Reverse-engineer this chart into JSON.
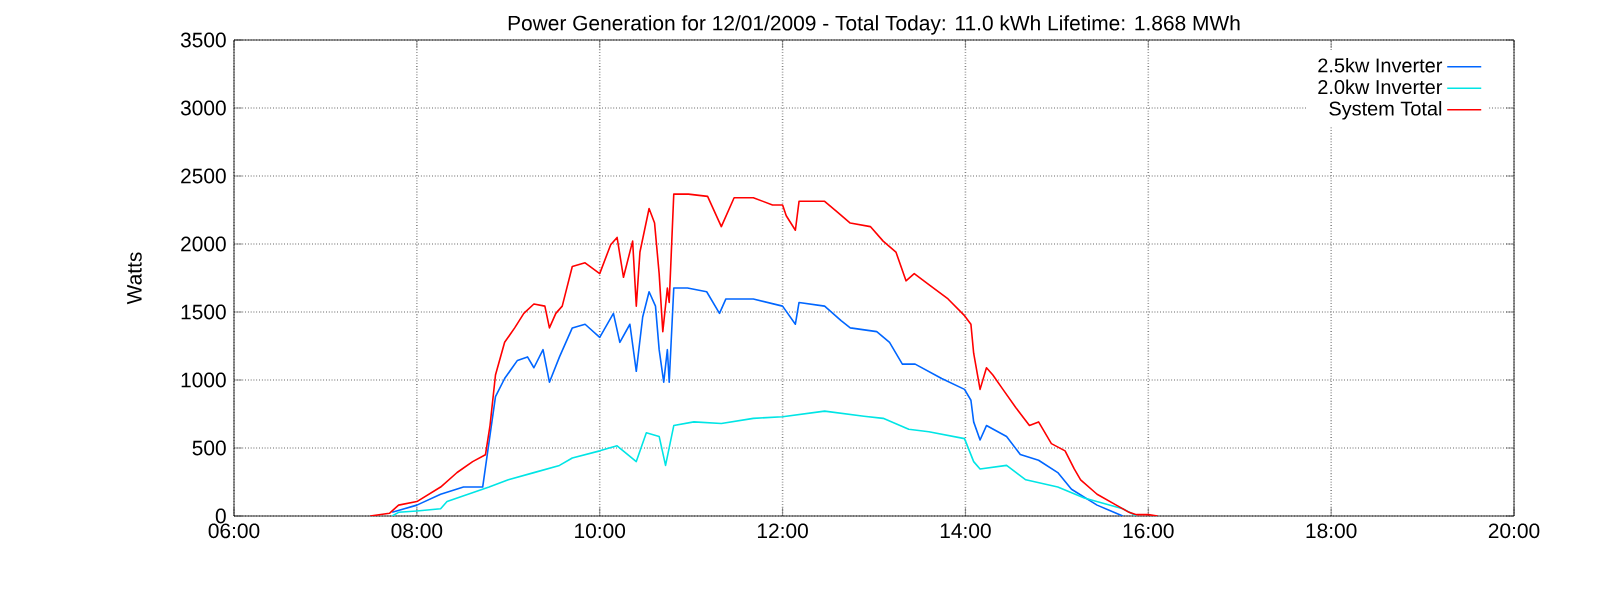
{
  "chart_data": {
    "type": "line",
    "title": "Power Generation for 12/01/2009 - Total Today: 11.0 kWh   Lifetime: 1.868 MWh",
    "ylabel": "Watts",
    "xlim": [
      6,
      20
    ],
    "xticks": [
      {
        "value": 6,
        "label": "06:00"
      },
      {
        "value": 8,
        "label": "08:00"
      },
      {
        "value": 10,
        "label": "10:00"
      },
      {
        "value": 12,
        "label": "12:00"
      },
      {
        "value": 14,
        "label": "14:00"
      },
      {
        "value": 16,
        "label": "16:00"
      },
      {
        "value": 18,
        "label": "18:00"
      },
      {
        "value": 20,
        "label": "20:00"
      }
    ],
    "ylim": [
      0,
      3500
    ],
    "yticks": [
      0,
      500,
      1000,
      1500,
      2000,
      2500,
      3000,
      3500
    ],
    "grid": true,
    "legend": "top right",
    "marker": "none",
    "line_style": "solid",
    "series": [
      {
        "name": "2.5kw Inverter",
        "color": "#0066ff",
        "x": [
          7.73,
          8.0,
          8.26,
          8.51,
          8.72,
          8.77,
          8.86,
          8.96,
          9.1,
          9.21,
          9.28,
          9.38,
          9.45,
          9.56,
          9.7,
          9.84,
          10.0,
          10.15,
          10.22,
          10.33,
          10.4,
          10.47,
          10.54,
          10.61,
          10.65,
          10.7,
          10.74,
          10.76,
          10.81,
          10.96,
          11.17,
          11.31,
          11.38,
          11.47,
          11.68,
          12.0,
          12.14,
          12.18,
          12.46,
          12.64,
          12.74,
          13.03,
          13.17,
          13.31,
          13.45,
          13.74,
          13.99,
          14.06,
          14.09,
          14.16,
          14.23,
          14.45,
          14.6,
          14.8,
          15.01,
          15.16,
          15.44,
          15.72
        ],
        "values": [
          27,
          80,
          160,
          213,
          213,
          452,
          878,
          1011,
          1144,
          1170,
          1090,
          1223,
          984,
          1170,
          1383,
          1410,
          1314,
          1490,
          1277,
          1410,
          1064,
          1463,
          1649,
          1543,
          1223,
          984,
          1223,
          984,
          1676,
          1676,
          1649,
          1490,
          1596,
          1596,
          1596,
          1543,
          1410,
          1570,
          1543,
          1436,
          1383,
          1356,
          1277,
          1117,
          1117,
          1011,
          931,
          851,
          692,
          559,
          665,
          585,
          452,
          410,
          319,
          197,
          80,
          0
        ]
      },
      {
        "name": "2.0kw Inverter",
        "color": "#00e5e5",
        "x": [
          7.73,
          7.8,
          8.0,
          8.26,
          8.33,
          8.79,
          9.0,
          9.28,
          9.56,
          9.7,
          10.0,
          10.19,
          10.4,
          10.51,
          10.65,
          10.72,
          10.81,
          11.03,
          11.33,
          11.68,
          12.0,
          12.46,
          12.89,
          13.1,
          13.38,
          13.6,
          13.99,
          14.09,
          14.16,
          14.45,
          14.66,
          15.01,
          15.3,
          15.72,
          15.87
        ],
        "values": [
          0,
          27,
          37,
          53,
          106,
          213,
          266,
          319,
          372,
          426,
          479,
          516,
          400,
          612,
          585,
          372,
          665,
          692,
          680,
          718,
          730,
          771,
          734,
          718,
          638,
          620,
          569,
          400,
          346,
          372,
          266,
          213,
          133,
          53,
          0
        ]
      },
      {
        "name": "System Total",
        "color": "#ff0000",
        "x": [
          7.49,
          7.7,
          7.8,
          8.0,
          8.26,
          8.44,
          8.61,
          8.75,
          8.8,
          8.86,
          8.96,
          9.07,
          9.17,
          9.28,
          9.4,
          9.45,
          9.52,
          9.59,
          9.7,
          9.84,
          10.0,
          10.12,
          10.19,
          10.26,
          10.36,
          10.4,
          10.44,
          10.54,
          10.6,
          10.65,
          10.69,
          10.74,
          10.76,
          10.81,
          10.97,
          11.18,
          11.33,
          11.47,
          11.68,
          11.89,
          12.0,
          12.04,
          12.14,
          12.18,
          12.46,
          12.6,
          12.74,
          12.96,
          13.1,
          13.24,
          13.35,
          13.44,
          13.6,
          13.81,
          13.99,
          14.06,
          14.09,
          14.16,
          14.23,
          14.3,
          14.41,
          14.55,
          14.7,
          14.8,
          14.94,
          15.09,
          15.19,
          15.26,
          15.44,
          15.65,
          15.79,
          15.87,
          16.0,
          16.1
        ],
        "values": [
          0,
          20,
          80,
          106,
          213,
          320,
          400,
          450,
          665,
          1037,
          1277,
          1383,
          1490,
          1559,
          1543,
          1383,
          1490,
          1543,
          1835,
          1862,
          1782,
          1995,
          2048,
          1755,
          2021,
          1543,
          1941,
          2261,
          2154,
          1782,
          1356,
          1676,
          1570,
          2367,
          2367,
          2350,
          2128,
          2340,
          2340,
          2287,
          2287,
          2208,
          2101,
          2314,
          2314,
          2234,
          2154,
          2128,
          2021,
          1941,
          1729,
          1782,
          1702,
          1596,
          1473,
          1410,
          1197,
          931,
          1090,
          1037,
          931,
          798,
          665,
          692,
          532,
          479,
          346,
          266,
          160,
          80,
          27,
          10,
          10,
          0
        ]
      }
    ]
  }
}
